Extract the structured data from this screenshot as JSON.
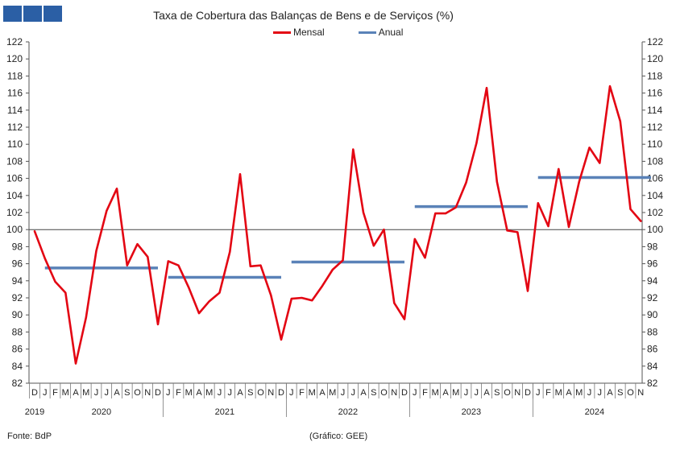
{
  "logo": {
    "colors": [
      "#2b5fa5",
      "#2b5fa5",
      "#2b5fa5"
    ]
  },
  "source": "Fonte: BdP",
  "credit": "(Gráfico: GEE)",
  "chart_data": {
    "type": "line",
    "title": "Taxa de Cobertura das Balanças de Bens e de Serviços (%)",
    "ylim": [
      82,
      122
    ],
    "yticks": [
      82,
      84,
      86,
      88,
      90,
      92,
      94,
      96,
      98,
      100,
      102,
      104,
      106,
      108,
      110,
      112,
      114,
      116,
      118,
      120,
      122
    ],
    "reference_line": 100,
    "grid": false,
    "legend_position": "top",
    "colors": {
      "Mensal": "#e30613",
      "Anual": "#5a82b8",
      "reference": "#444444"
    },
    "x_month_labels": [
      "D",
      "J",
      "F",
      "M",
      "A",
      "M",
      "J",
      "J",
      "A",
      "S",
      "O",
      "N",
      "D",
      "J",
      "F",
      "M",
      "A",
      "M",
      "J",
      "J",
      "A",
      "S",
      "O",
      "N",
      "D",
      "J",
      "F",
      "M",
      "A",
      "M",
      "J",
      "J",
      "A",
      "S",
      "O",
      "N",
      "D",
      "J",
      "F",
      "M",
      "A",
      "M",
      "J",
      "J",
      "A",
      "S",
      "O",
      "N",
      "D",
      "J",
      "F",
      "M",
      "A",
      "M",
      "J",
      "J",
      "A",
      "S",
      "O",
      "N"
    ],
    "x_year_labels": [
      {
        "label": "2019",
        "index": 0
      },
      {
        "label": "2020",
        "index": 6.5
      },
      {
        "label": "2021",
        "index": 18.5
      },
      {
        "label": "2022",
        "index": 30.5
      },
      {
        "label": "2023",
        "index": 42.5
      },
      {
        "label": "2024",
        "index": 54.5
      }
    ],
    "year_separators": [
      12.5,
      24.5,
      36.5,
      48.5
    ],
    "series": [
      {
        "name": "Mensal",
        "values": [
          99.8,
          96.6,
          93.9,
          92.6,
          84.3,
          89.7,
          97.5,
          102.2,
          104.8,
          95.8,
          98.3,
          96.8,
          88.9,
          96.3,
          95.8,
          93.2,
          90.2,
          91.6,
          92.6,
          97.4,
          106.5,
          95.7,
          95.8,
          92.3,
          87.1,
          91.9,
          92.0,
          91.7,
          93.4,
          95.3,
          96.4,
          109.4,
          102.0,
          98.1,
          100.0,
          91.4,
          89.5,
          98.9,
          96.7,
          101.9,
          101.9,
          102.6,
          105.5,
          110.1,
          116.6,
          105.6,
          99.9,
          99.7,
          92.8,
          103.1,
          100.4,
          107.1,
          100.3,
          105.6,
          109.6,
          107.8,
          116.8,
          112.7,
          102.4,
          101.0
        ]
      },
      {
        "name": "Anual",
        "segments": [
          {
            "start": 1,
            "end": 12,
            "value": 95.5
          },
          {
            "start": 13,
            "end": 24,
            "value": 94.4
          },
          {
            "start": 25,
            "end": 36,
            "value": 96.2
          },
          {
            "start": 37,
            "end": 48,
            "value": 102.7
          },
          {
            "start": 49,
            "end": 60,
            "value": 106.1
          }
        ]
      }
    ]
  }
}
